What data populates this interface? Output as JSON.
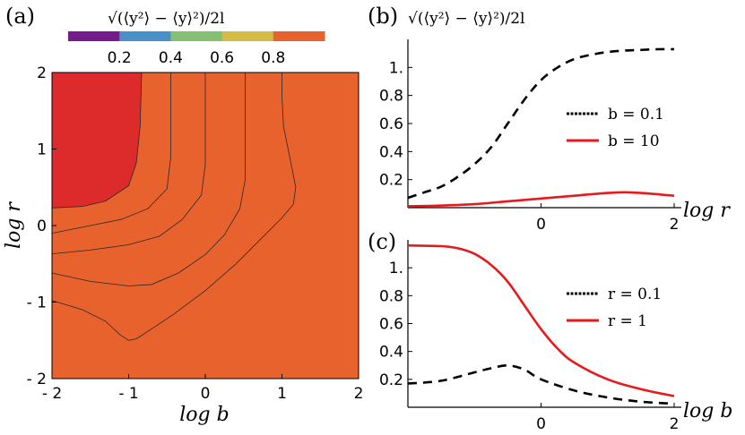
{
  "chart_data": [
    {
      "id": "a",
      "type": "contour",
      "panel_label": "(a)",
      "title": "√(⟨y²⟩ − ⟨y⟩²)/2l",
      "xlabel": "log b",
      "ylabel": "log r",
      "xlim": [
        -2,
        2
      ],
      "ylim": [
        -2,
        2
      ],
      "xticks": [
        -2,
        -1,
        0,
        1,
        2
      ],
      "xtick_labels": [
        "- 2",
        "- 1",
        "0",
        "1",
        "2"
      ],
      "yticks": [
        -2,
        -1,
        0,
        1,
        2
      ],
      "ytick_labels": [
        "- 2",
        "- 1",
        "0",
        "1",
        "2"
      ],
      "colorbar": {
        "levels": [
          0,
          0.2,
          0.4,
          0.6,
          0.8,
          1.0
        ],
        "tick_labels": [
          "0.2",
          "0.4",
          "0.6",
          "0.8"
        ],
        "colors": [
          "#731c8c",
          "#4a90c8",
          "#84c074",
          "#d4bb45",
          "#e8622e"
        ]
      },
      "high_color": "#dd2a2a",
      "regions": [
        {
          "level": "0-0.2",
          "color": "#731c8c",
          "boundary": [
            [
              -2.0,
              -0.98
            ],
            [
              -1.6,
              -1.1
            ],
            [
              -1.3,
              -1.25
            ],
            [
              -1.12,
              -1.42
            ],
            [
              -1.0,
              -1.5
            ],
            [
              -0.9,
              -1.48
            ],
            [
              -0.7,
              -1.35
            ],
            [
              -0.4,
              -1.15
            ],
            [
              0.0,
              -0.85
            ],
            [
              0.4,
              -0.5
            ],
            [
              0.75,
              -0.15
            ],
            [
              1.0,
              0.1
            ],
            [
              1.15,
              0.28
            ],
            [
              1.18,
              0.5
            ],
            [
              1.1,
              0.9
            ],
            [
              1.02,
              1.3
            ],
            [
              1.0,
              1.7
            ],
            [
              1.0,
              2.0
            ]
          ]
        },
        {
          "level": "0.2-0.4",
          "color": "#4a90c8",
          "boundary": [
            [
              -2.0,
              -0.62
            ],
            [
              -1.5,
              -0.73
            ],
            [
              -1.0,
              -0.79
            ],
            [
              -0.7,
              -0.77
            ],
            [
              -0.35,
              -0.62
            ],
            [
              0.0,
              -0.38
            ],
            [
              0.25,
              -0.12
            ],
            [
              0.45,
              0.22
            ],
            [
              0.52,
              0.6
            ],
            [
              0.52,
              1.2
            ],
            [
              0.52,
              2.0
            ]
          ]
        },
        {
          "level": "0.4-0.6",
          "color": "#84c074",
          "boundary": [
            [
              -2.0,
              -0.37
            ],
            [
              -1.5,
              -0.32
            ],
            [
              -1.0,
              -0.25
            ],
            [
              -0.6,
              -0.14
            ],
            [
              -0.3,
              0.08
            ],
            [
              -0.05,
              0.4
            ],
            [
              0.0,
              0.8
            ],
            [
              0.0,
              1.3
            ],
            [
              0.0,
              2.0
            ]
          ]
        },
        {
          "level": "0.6-0.8",
          "color": "#d4bb45",
          "boundary": [
            [
              -2.0,
              -0.1
            ],
            [
              -1.5,
              0.0
            ],
            [
              -1.1,
              0.08
            ],
            [
              -0.75,
              0.22
            ],
            [
              -0.5,
              0.48
            ],
            [
              -0.45,
              0.9
            ],
            [
              -0.45,
              1.4
            ],
            [
              -0.45,
              2.0
            ]
          ]
        },
        {
          "level": "0.8-1.0",
          "color": "#e8622e",
          "boundary": [
            [
              -2.0,
              0.23
            ],
            [
              -1.6,
              0.25
            ],
            [
              -1.3,
              0.32
            ],
            [
              -1.0,
              0.52
            ],
            [
              -0.9,
              0.82
            ],
            [
              -0.85,
              1.3
            ],
            [
              -0.83,
              2.0
            ]
          ]
        }
      ]
    },
    {
      "id": "b",
      "type": "line",
      "panel_label": "(b)",
      "title": "√(⟨y²⟩ − ⟨y⟩²)/2l",
      "xlabel": "log r",
      "xlim": [
        -2,
        2
      ],
      "ylim": [
        0,
        1.2
      ],
      "xticks": [
        0,
        2
      ],
      "xtick_labels": [
        "0",
        "2"
      ],
      "yticks": [
        0.2,
        0.4,
        0.6,
        0.8,
        1.0
      ],
      "ytick_labels": [
        "0.2",
        "0.4",
        "0.6",
        "0.8",
        "1."
      ],
      "legend": "right",
      "series": [
        {
          "name": "b  = 0.1",
          "style": "dashed",
          "color": "#000000",
          "x": [
            -2.0,
            -1.75,
            -1.5,
            -1.25,
            -1.0,
            -0.75,
            -0.5,
            -0.25,
            0.0,
            0.25,
            0.5,
            0.75,
            1.0,
            1.25,
            1.5,
            1.75,
            2.0
          ],
          "y": [
            0.07,
            0.11,
            0.15,
            0.22,
            0.31,
            0.43,
            0.6,
            0.77,
            0.91,
            1.0,
            1.06,
            1.09,
            1.11,
            1.12,
            1.125,
            1.13,
            1.13
          ]
        },
        {
          "name": "b  = 10",
          "style": "solid",
          "color": "#e8191c",
          "x": [
            -2.0,
            -1.5,
            -1.0,
            -0.5,
            0.0,
            0.5,
            1.0,
            1.25,
            1.5,
            2.0
          ],
          "y": [
            0.01,
            0.015,
            0.025,
            0.045,
            0.065,
            0.085,
            0.105,
            0.11,
            0.105,
            0.085
          ]
        }
      ]
    },
    {
      "id": "c",
      "type": "line",
      "panel_label": "(c)",
      "xlabel": "log b",
      "xlim": [
        -2,
        2
      ],
      "ylim": [
        0,
        1.2
      ],
      "xticks": [
        0,
        2
      ],
      "xtick_labels": [
        "0",
        "2"
      ],
      "yticks": [
        0.2,
        0.4,
        0.6,
        0.8,
        1.0
      ],
      "ytick_labels": [
        "0.2",
        "0.4",
        "0.6",
        "0.8",
        "1."
      ],
      "legend": "right",
      "series": [
        {
          "name": "r  = 0.1",
          "style": "dashed",
          "color": "#000000",
          "x": [
            -2.0,
            -1.5,
            -1.0,
            -0.75,
            -0.5,
            -0.25,
            0.0,
            0.5,
            1.0,
            1.5,
            2.0
          ],
          "y": [
            0.17,
            0.19,
            0.25,
            0.28,
            0.3,
            0.27,
            0.2,
            0.12,
            0.07,
            0.04,
            0.025
          ]
        },
        {
          "name": "r  = 1",
          "style": "solid",
          "color": "#e8191c",
          "x": [
            -2.0,
            -1.5,
            -1.25,
            -1.0,
            -0.75,
            -0.5,
            -0.25,
            0.0,
            0.25,
            0.5,
            1.0,
            1.5,
            2.0
          ],
          "y": [
            1.16,
            1.155,
            1.14,
            1.1,
            1.02,
            0.9,
            0.73,
            0.56,
            0.42,
            0.32,
            0.2,
            0.13,
            0.08
          ]
        }
      ]
    }
  ]
}
